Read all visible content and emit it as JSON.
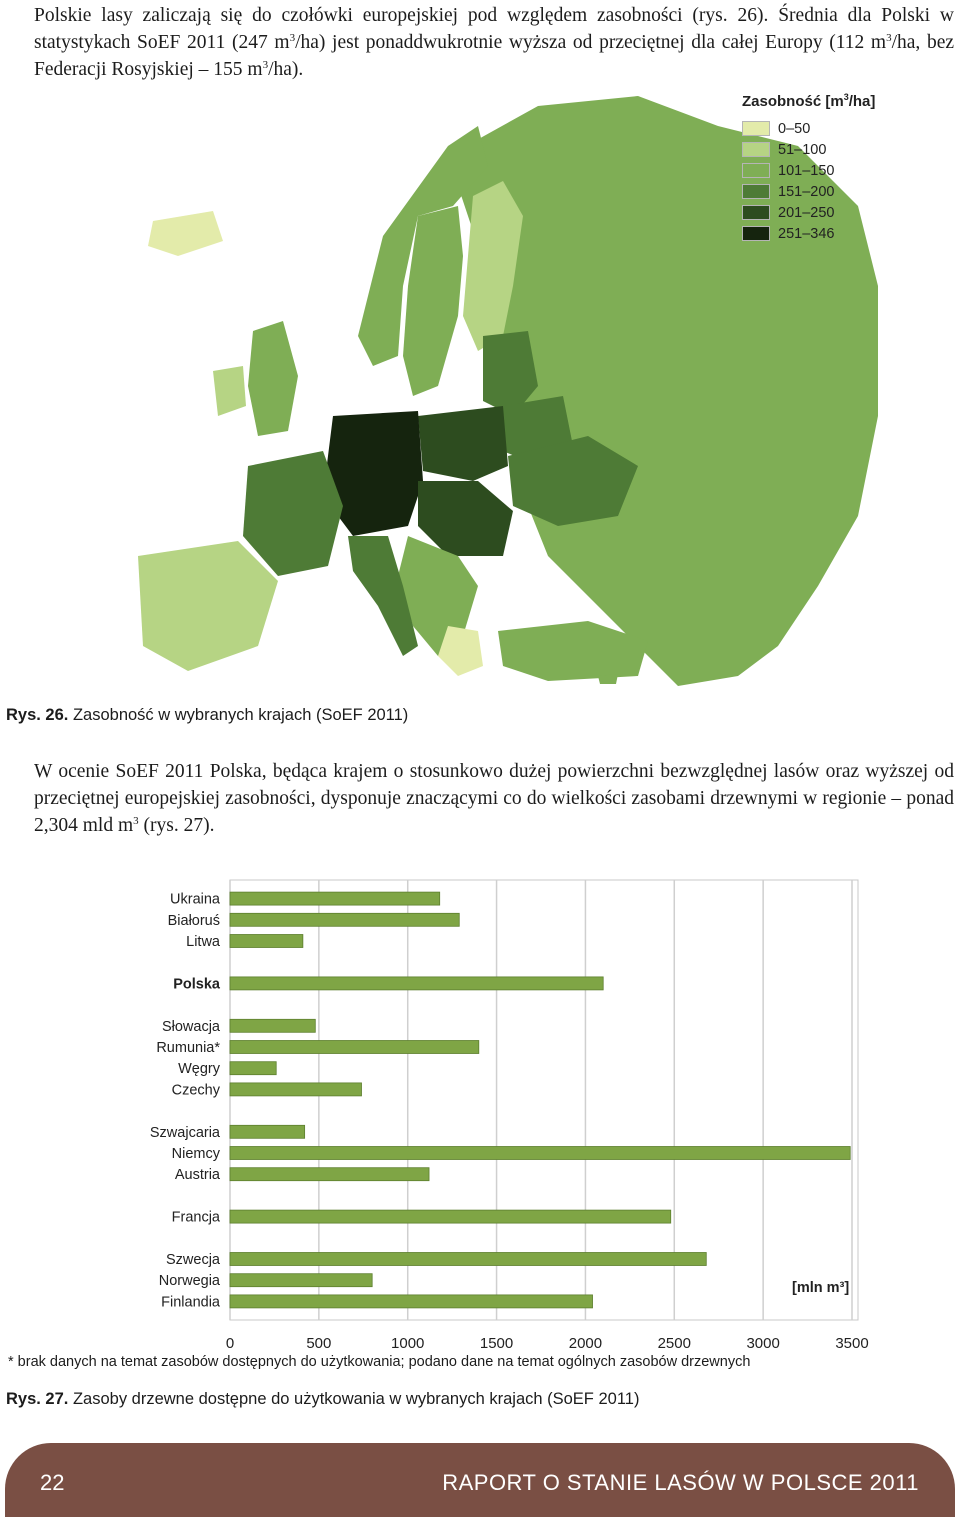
{
  "intro_paragraph": {
    "text_a": "Polskie lasy zaliczają się do czołówki europejskiej pod względem zasobności (rys. 26). Średnia dla Polski w statystykach SoEF 2011 (247 m",
    "sup_a": "3",
    "text_b": "/ha) jest ponaddwukrotnie wyższa od przeciętnej dla całej Europy (112 m",
    "sup_b": "3",
    "text_c": "/ha, bez Federacji Rosyjskiej – 155 m",
    "sup_c": "3",
    "text_d": "/ha)."
  },
  "map_figure": {
    "legend_title_a": "Zasobność [m",
    "legend_title_sup": "3",
    "legend_title_b": "/ha]",
    "legend_items": [
      {
        "label": "0–50",
        "color": "#e3ebaa"
      },
      {
        "label": "51–100",
        "color": "#b6d484"
      },
      {
        "label": "101–150",
        "color": "#7fae55"
      },
      {
        "label": "151–200",
        "color": "#4e7b36"
      },
      {
        "label": "201–250",
        "color": "#2d4c1f"
      },
      {
        "label": "251–346",
        "color": "#15240e"
      }
    ],
    "caption_bold": "Rys. 26.",
    "caption_text": " Zasobność w wybranych krajach (SoEF 2011)"
  },
  "second_paragraph": {
    "text_a": "W ocenie SoEF 2011 Polska, będąca krajem o stosunkowo dużej powierzchni bezwzględnej lasów oraz wyższej od przeciętnej europejskiej zasobności, dysponuje znaczącymi co do wielkości zasobami drzewnymi w regionie – ponad 2,304 mld m",
    "sup_a": "3",
    "text_b": " (rys. 27)."
  },
  "chart_data": {
    "type": "bar",
    "orientation": "horizontal",
    "categories": [
      "Ukraina",
      "Białoruś",
      "Litwa",
      "Polska",
      "Słowacja",
      "Rumunia*",
      "Węgry",
      "Czechy",
      "Szwajcaria",
      "Niemcy",
      "Austria",
      "Francja",
      "Szwecja",
      "Norwegia",
      "Finlandia"
    ],
    "groups": [
      3,
      1,
      4,
      3,
      1,
      3
    ],
    "highlight": "Polska",
    "values": [
      1180,
      1290,
      410,
      2100,
      480,
      1400,
      260,
      740,
      420,
      3490,
      1120,
      2480,
      2680,
      800,
      2040
    ],
    "xlim": [
      0,
      3500
    ],
    "xticks": [
      "0",
      "500",
      "1000",
      "1500",
      "2000",
      "2500",
      "3000",
      "3500"
    ],
    "unit_label": "[mln m³]",
    "grid": true,
    "bar_color": "#7fa545",
    "title": "",
    "xlabel": "",
    "ylabel": ""
  },
  "footnote": "* brak danych na temat zasobów dostępnych do użytkowania; podano dane na temat ogólnych zasobów drzewnych",
  "chart_caption": {
    "bold": "Rys. 27.",
    "text": " Zasoby drzewne dostępne do użytkowania w wybranych krajach (SoEF 2011)"
  },
  "footer": {
    "page_number": "22",
    "report_title": "RAPORT O STANIE LASÓW W POLSCE 2011",
    "color": "#7a4f44"
  }
}
